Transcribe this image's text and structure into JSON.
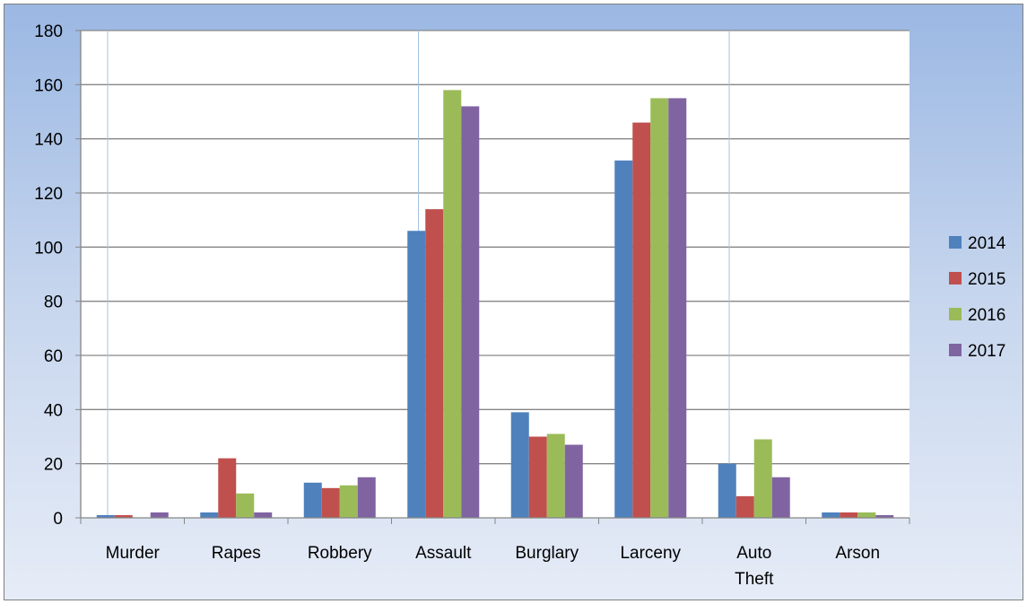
{
  "chart_data": {
    "type": "bar",
    "title": "",
    "xlabel": "",
    "ylabel": "",
    "ylim": [
      0,
      180
    ],
    "yticks": [
      0,
      20,
      40,
      60,
      80,
      100,
      120,
      140,
      160,
      180
    ],
    "grid": true,
    "legend_position": "right",
    "categories": [
      [
        "Murder"
      ],
      [
        "Rapes"
      ],
      [
        "Robbery"
      ],
      [
        "Assault"
      ],
      [
        "Burglary"
      ],
      [
        "Larceny"
      ],
      [
        "Auto",
        "Theft"
      ],
      [
        "Arson"
      ]
    ],
    "series": [
      {
        "name": "2014",
        "color": "#4f81bd",
        "values": [
          1,
          2,
          13,
          106,
          39,
          132,
          20,
          2
        ]
      },
      {
        "name": "2015",
        "color": "#c0504d",
        "values": [
          1,
          22,
          11,
          114,
          30,
          146,
          8,
          2
        ]
      },
      {
        "name": "2016",
        "color": "#9bbb59",
        "values": [
          0,
          9,
          12,
          158,
          31,
          155,
          29,
          2
        ]
      },
      {
        "name": "2017",
        "color": "#8064a2",
        "values": [
          2,
          2,
          15,
          152,
          27,
          155,
          15,
          1
        ]
      }
    ]
  }
}
